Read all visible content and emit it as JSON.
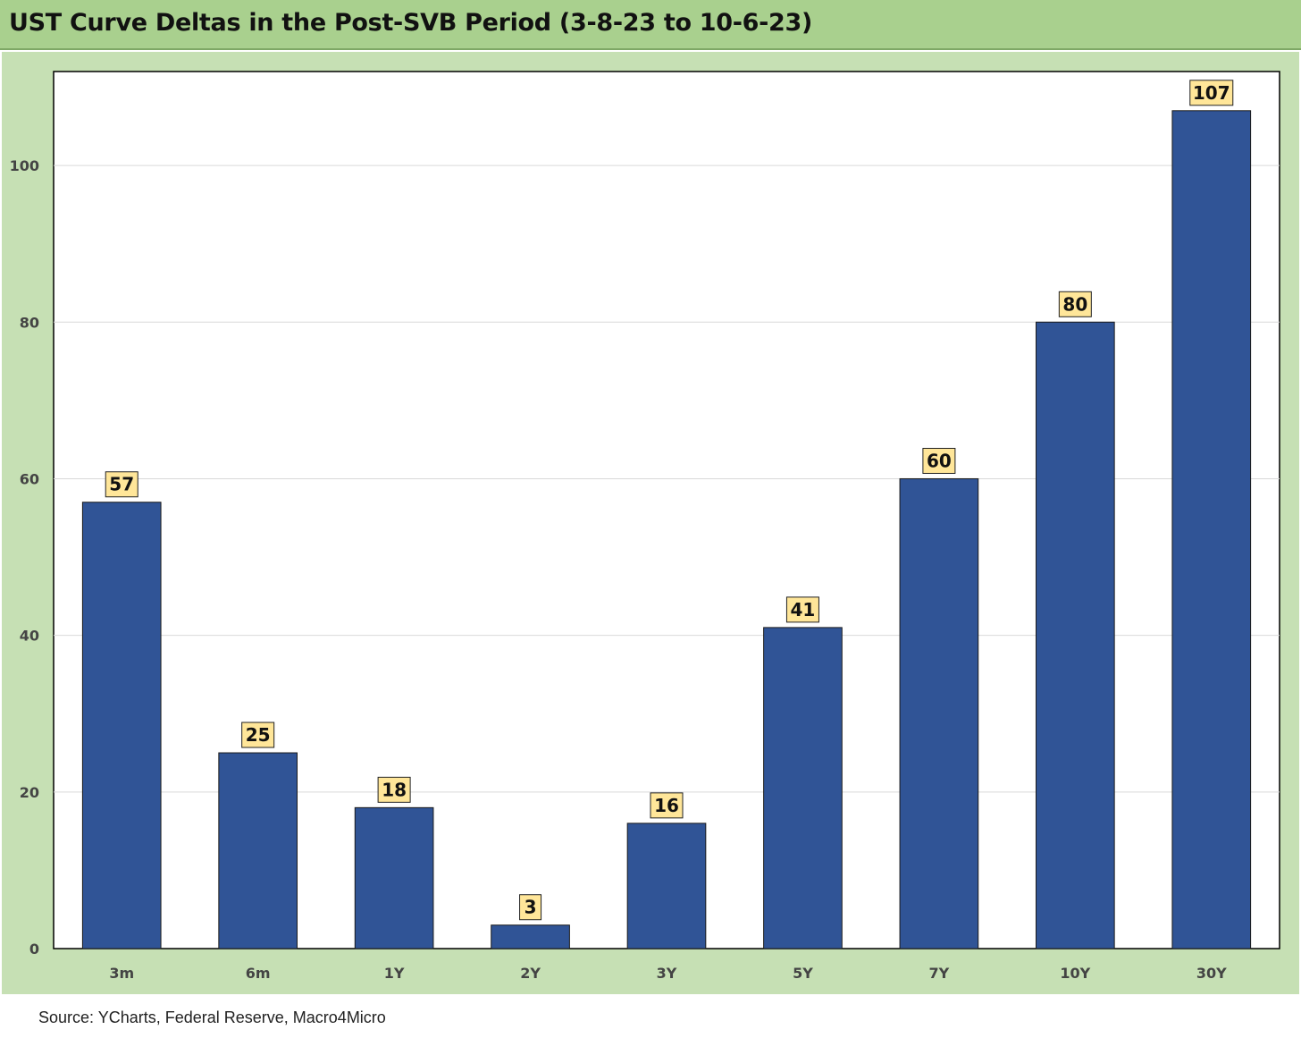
{
  "title": "UST Curve Deltas in the Post-SVB Period (3-8-23 to 10-6-23)",
  "source": "Source: YCharts, Federal Reserve, Macro4Micro",
  "colors": {
    "bar": "#305496",
    "label_box": "#ffe699",
    "header_bg": "#a9d08e",
    "panel_bg": "#c6e0b4"
  },
  "chart_data": {
    "type": "bar",
    "title": "UST Curve Deltas in the Post-SVB Period (3-8-23 to 10-6-23)",
    "categories": [
      "3m",
      "6m",
      "1Y",
      "2Y",
      "3Y",
      "5Y",
      "7Y",
      "10Y",
      "30Y"
    ],
    "values": [
      57,
      25,
      18,
      3,
      16,
      41,
      60,
      80,
      107
    ],
    "yticks": [
      0,
      20,
      40,
      60,
      80,
      100
    ],
    "ylim": [
      0,
      112
    ],
    "grid": true,
    "legend": "none",
    "xlabel": "",
    "ylabel": ""
  }
}
